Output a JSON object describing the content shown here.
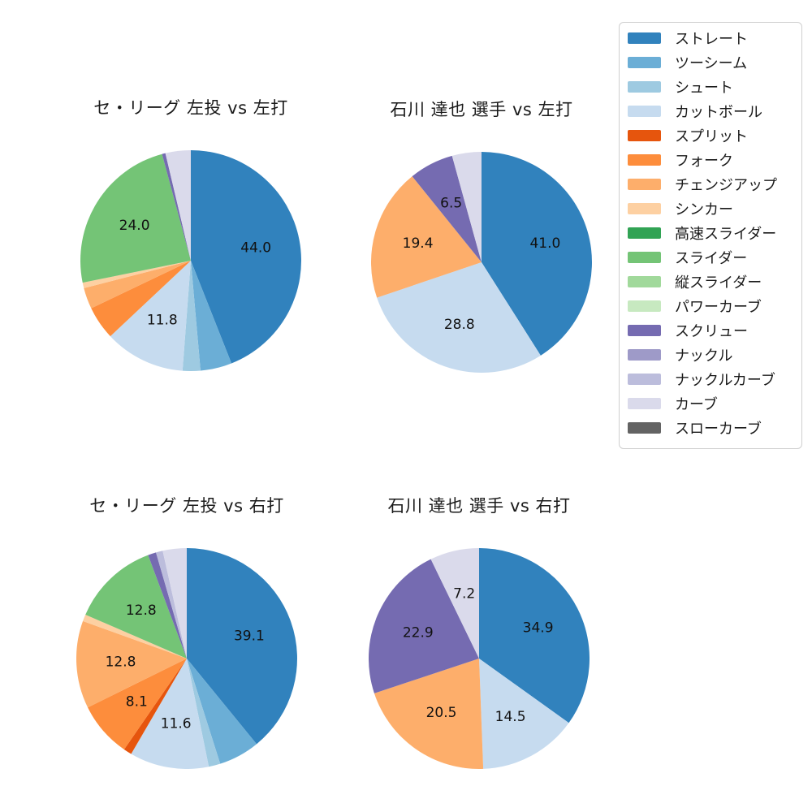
{
  "figure": {
    "background_color": "#ffffff",
    "text_color": "#1a1a1a",
    "legend_border_color": "#cfcfcf"
  },
  "palette": {
    "ストレート": "#3182bd",
    "ツーシーム": "#6baed6",
    "シュート": "#9ecae1",
    "カットボール": "#c6dbef",
    "スプリット": "#e6550d",
    "フォーク": "#fd8d3c",
    "チェンジアップ": "#fdae6b",
    "シンカー": "#fdd0a2",
    "高速スライダー": "#31a354",
    "スライダー": "#74c476",
    "縦スライダー": "#a1d99b",
    "パワーカーブ": "#c7e9c0",
    "スクリュー": "#756bb1",
    "ナックル": "#9e9ac8",
    "ナックルカーブ": "#bcbddc",
    "カーブ": "#dadaeb",
    "スローカーブ": "#636363"
  },
  "legend": {
    "position": "right",
    "items": [
      {
        "label": "ストレート",
        "color": "#3182bd"
      },
      {
        "label": "ツーシーム",
        "color": "#6baed6"
      },
      {
        "label": "シュート",
        "color": "#9ecae1"
      },
      {
        "label": "カットボール",
        "color": "#c6dbef"
      },
      {
        "label": "スプリット",
        "color": "#e6550d"
      },
      {
        "label": "フォーク",
        "color": "#fd8d3c"
      },
      {
        "label": "チェンジアップ",
        "color": "#fdae6b"
      },
      {
        "label": "シンカー",
        "color": "#fdd0a2"
      },
      {
        "label": "高速スライダー",
        "color": "#31a354"
      },
      {
        "label": "スライダー",
        "color": "#74c476"
      },
      {
        "label": "縦スライダー",
        "color": "#a1d99b"
      },
      {
        "label": "パワーカーブ",
        "color": "#c7e9c0"
      },
      {
        "label": "スクリュー",
        "color": "#756bb1"
      },
      {
        "label": "ナックル",
        "color": "#9e9ac8"
      },
      {
        "label": "ナックルカーブ",
        "color": "#bcbddc"
      },
      {
        "label": "カーブ",
        "color": "#dadaeb"
      },
      {
        "label": "スローカーブ",
        "color": "#636363"
      }
    ]
  },
  "chart_data": [
    {
      "type": "pie",
      "title": "セ・リーグ 左投 vs 左打",
      "start_angle": "top",
      "direction": "clockwise",
      "label_radius_fraction": 0.6,
      "slices": [
        {
          "name": "ストレート",
          "value": 44.0,
          "label": "44.0"
        },
        {
          "name": "ツーシーム",
          "value": 4.6,
          "label": ""
        },
        {
          "name": "シュート",
          "value": 2.6,
          "label": ""
        },
        {
          "name": "カットボール",
          "value": 11.8,
          "label": "11.8"
        },
        {
          "name": "フォーク",
          "value": 4.9,
          "label": ""
        },
        {
          "name": "チェンジアップ",
          "value": 3.1,
          "label": ""
        },
        {
          "name": "シンカー",
          "value": 0.8,
          "label": ""
        },
        {
          "name": "スライダー",
          "value": 24.0,
          "label": "24.0"
        },
        {
          "name": "スクリュー",
          "value": 0.5,
          "label": ""
        },
        {
          "name": "カーブ",
          "value": 3.7,
          "label": ""
        }
      ]
    },
    {
      "type": "pie",
      "title": "石川 達也 選手 vs 左打",
      "start_angle": "top",
      "direction": "clockwise",
      "label_radius_fraction": 0.6,
      "slices": [
        {
          "name": "ストレート",
          "value": 41.0,
          "label": "41.0"
        },
        {
          "name": "カットボール",
          "value": 28.8,
          "label": "28.8"
        },
        {
          "name": "チェンジアップ",
          "value": 19.4,
          "label": "19.4"
        },
        {
          "name": "スクリュー",
          "value": 6.5,
          "label": "6.5"
        },
        {
          "name": "カーブ",
          "value": 4.3,
          "label": ""
        }
      ]
    },
    {
      "type": "pie",
      "title": "セ・リーグ 左投 vs 右打",
      "start_angle": "top",
      "direction": "clockwise",
      "label_radius_fraction": 0.6,
      "slices": [
        {
          "name": "ストレート",
          "value": 39.1,
          "label": "39.1"
        },
        {
          "name": "ツーシーム",
          "value": 6.0,
          "label": ""
        },
        {
          "name": "シュート",
          "value": 1.7,
          "label": ""
        },
        {
          "name": "カットボール",
          "value": 11.6,
          "label": "11.6"
        },
        {
          "name": "スプリット",
          "value": 1.2,
          "label": ""
        },
        {
          "name": "フォーク",
          "value": 8.1,
          "label": "8.1"
        },
        {
          "name": "チェンジアップ",
          "value": 12.8,
          "label": "12.8"
        },
        {
          "name": "シンカー",
          "value": 1.0,
          "label": ""
        },
        {
          "name": "スライダー",
          "value": 12.8,
          "label": "12.8"
        },
        {
          "name": "スクリュー",
          "value": 1.2,
          "label": ""
        },
        {
          "name": "ナックルカーブ",
          "value": 1.0,
          "label": ""
        },
        {
          "name": "カーブ",
          "value": 3.5,
          "label": ""
        }
      ]
    },
    {
      "type": "pie",
      "title": "石川 達也 選手 vs 右打",
      "start_angle": "top",
      "direction": "clockwise",
      "label_radius_fraction": 0.6,
      "slices": [
        {
          "name": "ストレート",
          "value": 34.9,
          "label": "34.9"
        },
        {
          "name": "カットボール",
          "value": 14.5,
          "label": "14.5"
        },
        {
          "name": "チェンジアップ",
          "value": 20.5,
          "label": "20.5"
        },
        {
          "name": "スクリュー",
          "value": 22.9,
          "label": "22.9"
        },
        {
          "name": "カーブ",
          "value": 7.2,
          "label": "7.2"
        }
      ]
    }
  ]
}
